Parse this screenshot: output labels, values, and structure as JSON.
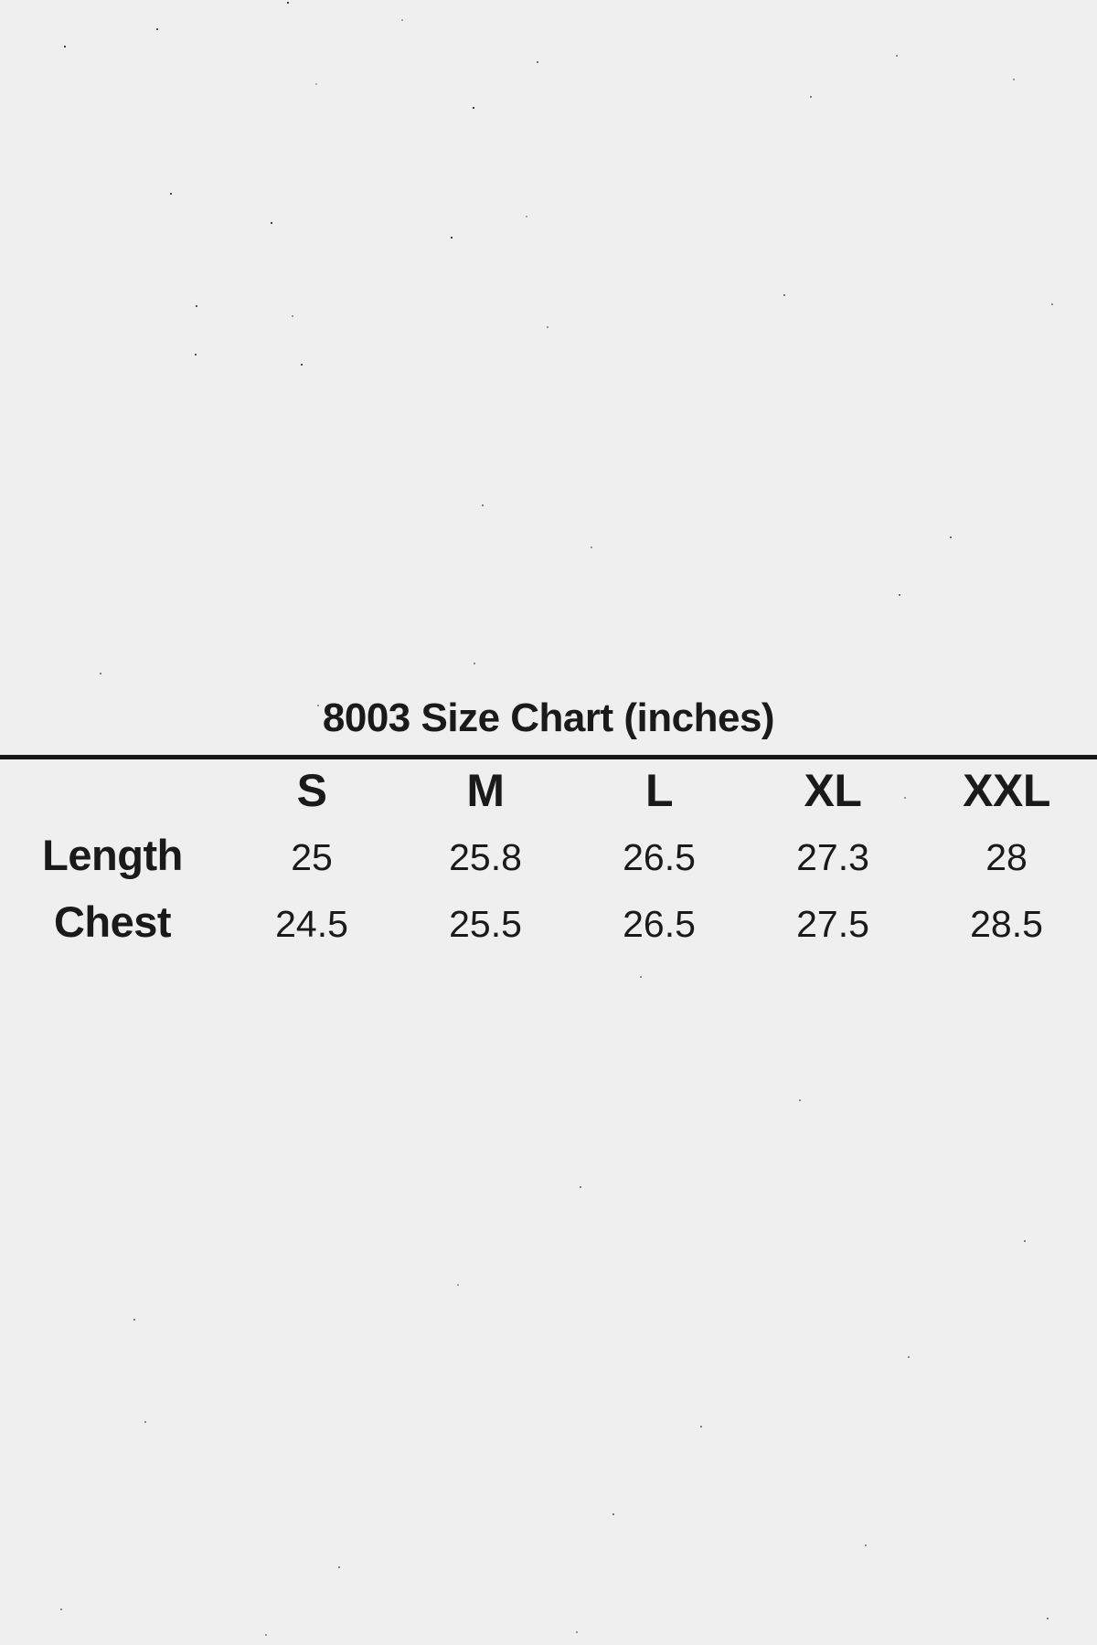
{
  "colors": {
    "background": "#efefef",
    "text": "#1a1a1a",
    "divider": "#161616"
  },
  "chart_data": {
    "type": "table",
    "title": "8003 Size Chart (inches)",
    "units": "inches",
    "columns": [
      "S",
      "M",
      "L",
      "XL",
      "XXL"
    ],
    "rows": [
      {
        "label": "Length",
        "values": [
          "25",
          "25.8",
          "26.5",
          "27.3",
          "28"
        ]
      },
      {
        "label": "Chest",
        "values": [
          "24.5",
          "25.5",
          "26.5",
          "27.5",
          "28.5"
        ]
      }
    ]
  }
}
